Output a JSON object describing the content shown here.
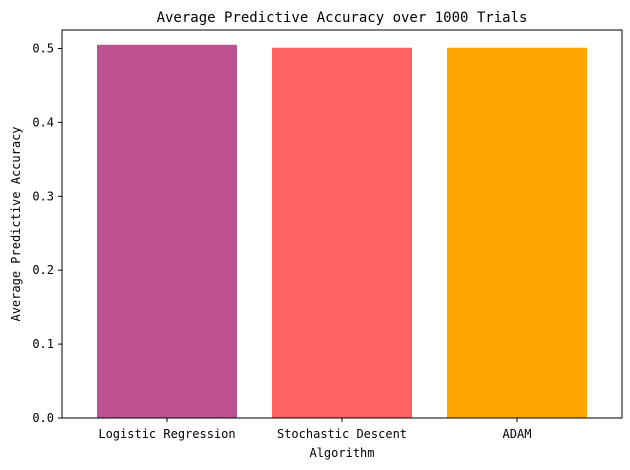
{
  "chart_data": {
    "type": "bar",
    "title": "Average Predictive Accuracy over 1000 Trials",
    "xlabel": "Algorithm",
    "ylabel": "Average Predictive Accuracy",
    "categories": [
      "Logistic Regression",
      "Stochastic Descent",
      "ADAM"
    ],
    "values": [
      0.505,
      0.501,
      0.501
    ],
    "colors": [
      "#bc5090",
      "#ff6361",
      "#ffa600"
    ],
    "ylim": [
      0,
      0.525
    ],
    "yticks": [
      0.0,
      0.1,
      0.2,
      0.3,
      0.4,
      0.5
    ],
    "ytick_labels": [
      "0.0",
      "0.1",
      "0.2",
      "0.3",
      "0.4",
      "0.5"
    ],
    "grid": false,
    "legend": "none"
  }
}
